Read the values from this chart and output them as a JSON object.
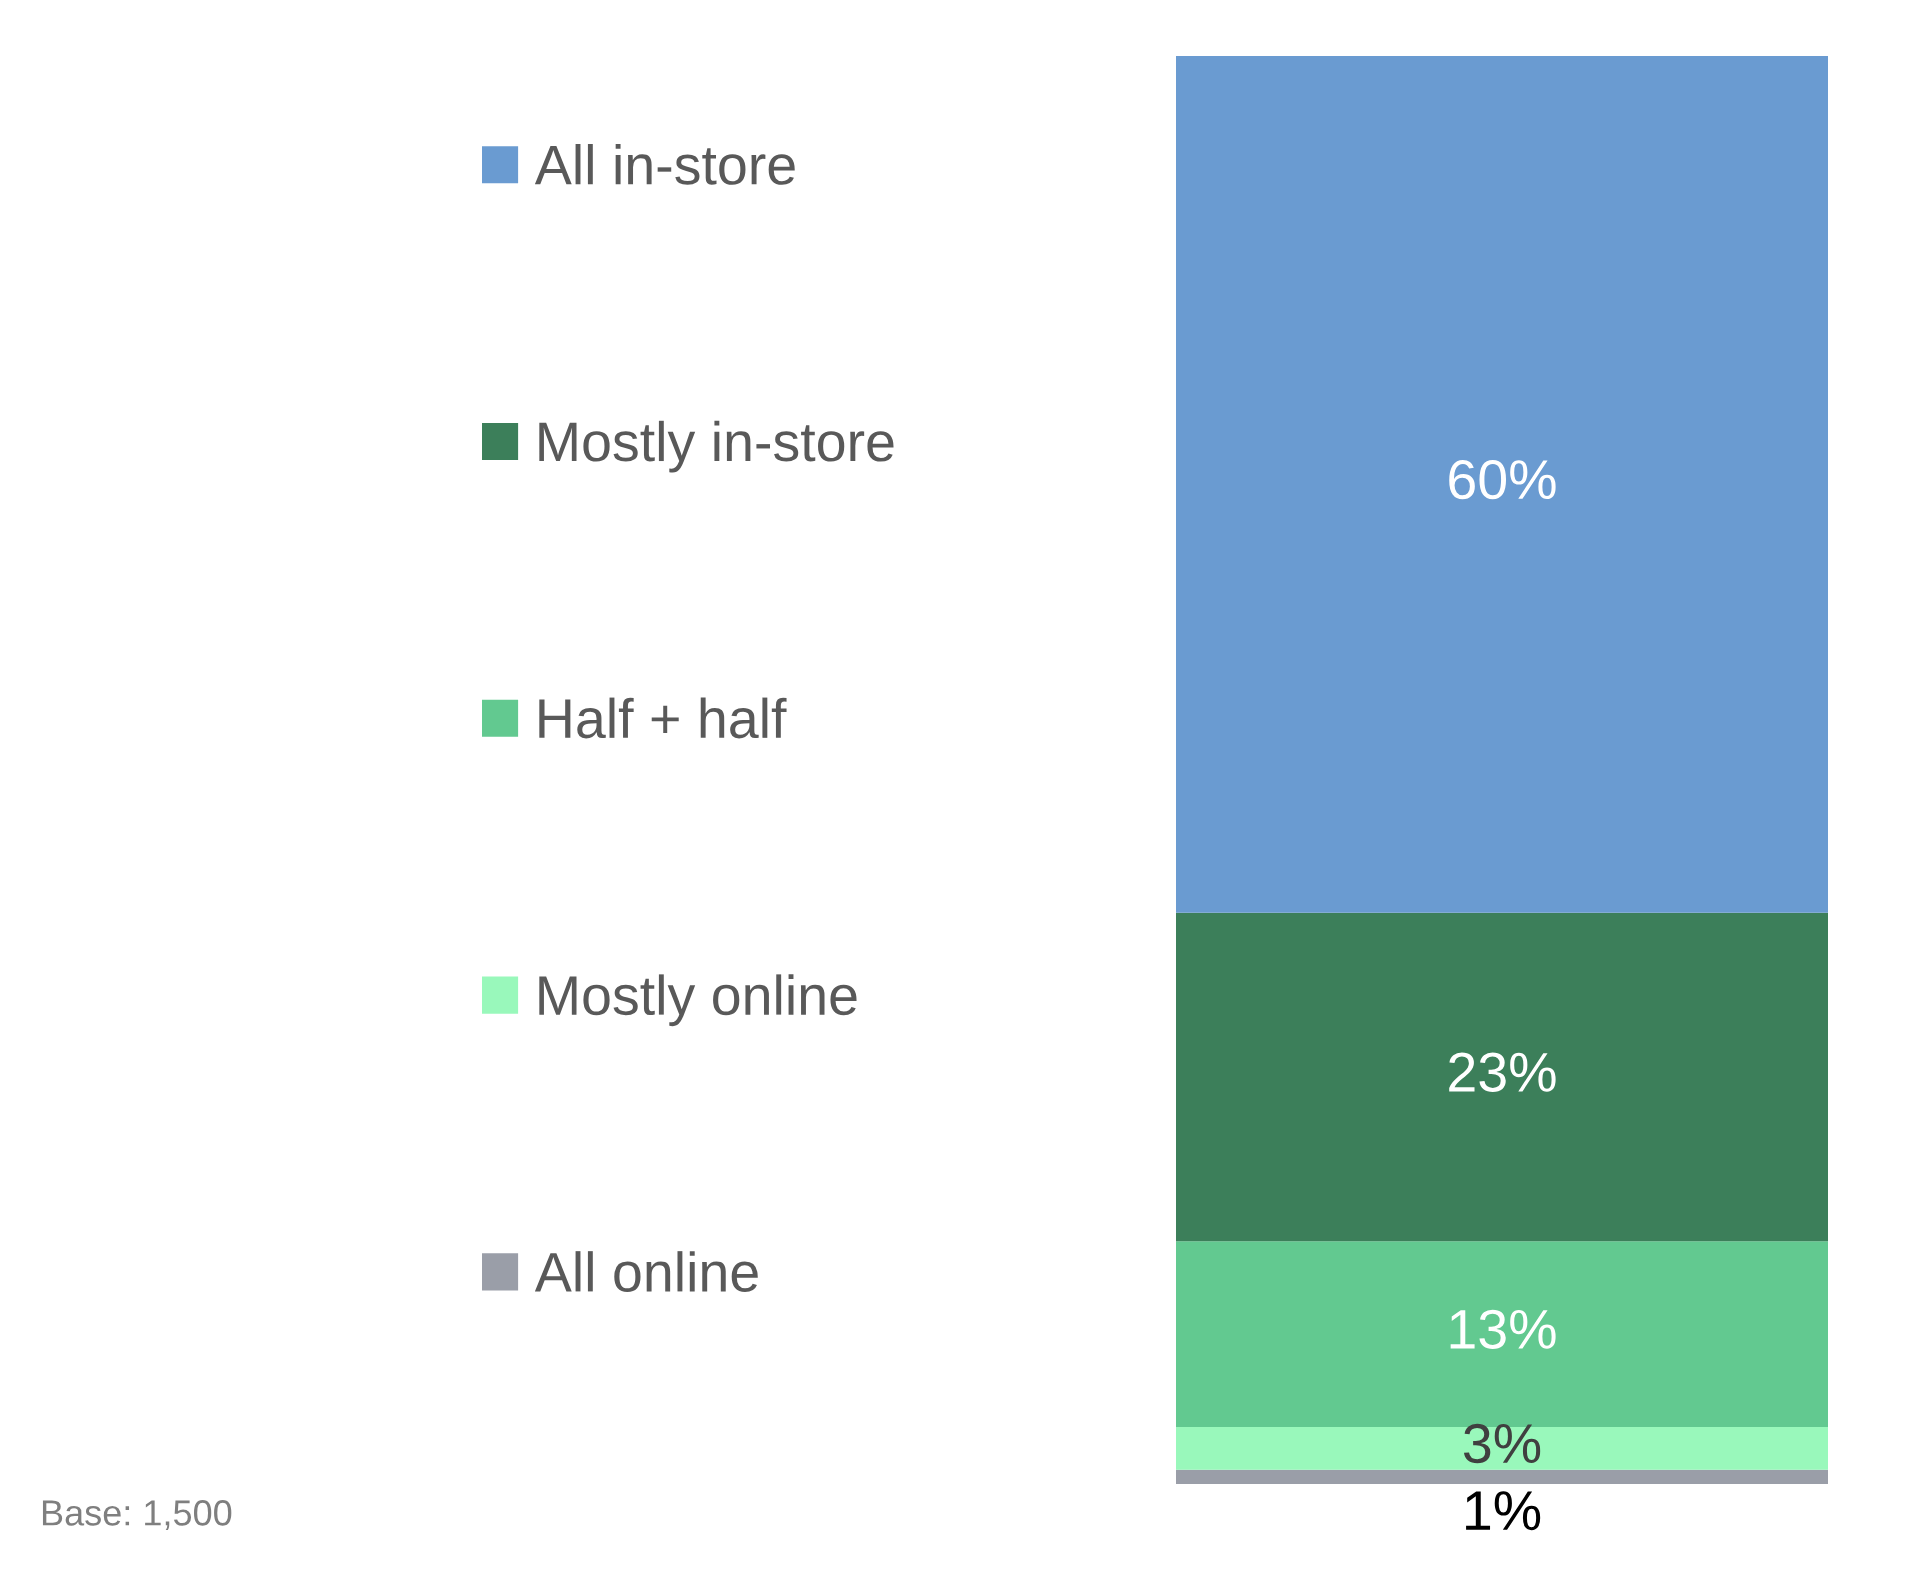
{
  "chart_data": {
    "type": "bar",
    "stacked": true,
    "categories": [
      null
    ],
    "series": [
      {
        "name": "All online",
        "color": "#9a9ea8",
        "values": [
          1
        ],
        "value_labels": [
          "1%"
        ]
      },
      {
        "name": "Mostly online",
        "color": "#99f8bb",
        "values": [
          3
        ],
        "value_labels": [
          "3%"
        ]
      },
      {
        "name": "Half + half",
        "color": "#62c990",
        "values": [
          13
        ],
        "value_labels": [
          "13%"
        ]
      },
      {
        "name": "Mostly in-store",
        "color": "#3c7f5a",
        "values": [
          23
        ],
        "value_labels": [
          "23%"
        ]
      },
      {
        "name": "All in-store",
        "color": "#6a9bd1",
        "values": [
          60
        ],
        "value_labels": [
          "60%"
        ]
      }
    ],
    "legend": "left",
    "tick_labels": false,
    "annotations": [
      "Base: 1,500"
    ]
  }
}
